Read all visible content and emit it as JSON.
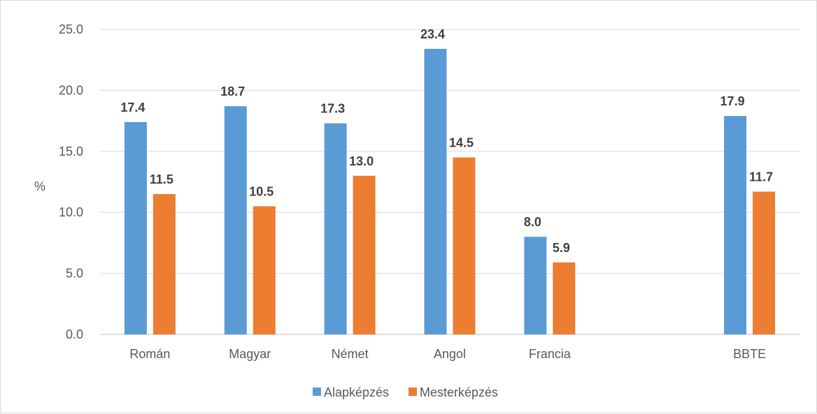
{
  "chart_data": {
    "type": "bar",
    "categories": [
      "Román",
      "Magyar",
      "Német",
      "Angol",
      "Francia",
      "",
      "BBTE"
    ],
    "series": [
      {
        "name": "Alapképzés",
        "color": "#5b9bd5",
        "values": [
          17.4,
          18.7,
          17.3,
          23.4,
          8.0,
          null,
          17.9
        ]
      },
      {
        "name": "Mesterképzés",
        "color": "#ed7d31",
        "values": [
          11.5,
          10.5,
          13.0,
          14.5,
          5.9,
          null,
          11.7
        ]
      }
    ],
    "ylabel": "%",
    "xlabel": "",
    "ylim": [
      0,
      25
    ],
    "yticks": [
      "0.0",
      "5.0",
      "10.0",
      "15.0",
      "20.0",
      "25.0"
    ],
    "grid": true,
    "legend": "bottom"
  }
}
